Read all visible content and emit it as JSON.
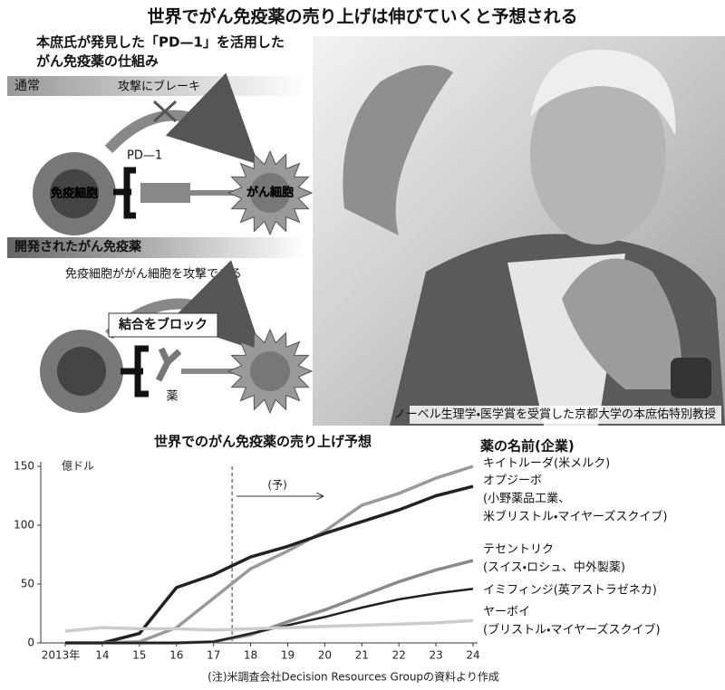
{
  "header": {
    "title": "世界でがん免疫薬の売り上げは伸びていくと予想される"
  },
  "diagram": {
    "title_lines": [
      "本庶氏が発見した「PD—1」を活用した",
      "がん免疫薬の仕組み"
    ],
    "normal": {
      "label": "通常",
      "brake": "攻撃にブレーキ",
      "pd1": "PD—1",
      "immune_cell": "免疫細胞",
      "cancer_cell": "がん細胞"
    },
    "developed": {
      "label": "開発されたがん免疫薬",
      "caption": "免疫細胞ががん細胞を攻撃できる",
      "block": "結合をブロック",
      "drug": "薬"
    }
  },
  "photo": {
    "caption": "ノーベル生理学・医学賞を受賞した京都大学の本庶佑特別教授"
  },
  "chart_data": {
    "type": "line",
    "title": "世界でのがん免疫薬の売り上げ予想",
    "y_unit": "億ドル",
    "legend_title": "薬の名前(企業)",
    "forecast_label": "(予)",
    "source": "(注)米調査会社Decision Resources Groupの資料より作成",
    "categories": [
      "2013年",
      "14",
      "15",
      "16",
      "17",
      "18",
      "19",
      "20",
      "21",
      "22",
      "23",
      "24"
    ],
    "ylim": [
      0,
      150
    ],
    "yticks": [
      0,
      50,
      100,
      150
    ],
    "series": [
      {
        "name": "キイトルーダ(米メルク)",
        "sub": [],
        "color": "#9a9a9a",
        "width": 3.5,
        "values": [
          0,
          0,
          1,
          13,
          38,
          63,
          78,
          95,
          117,
          127,
          140,
          150
        ]
      },
      {
        "name": "オプジーボ",
        "sub": [
          "(小野薬品工業、",
          "米ブリストル・マイヤーズスクイブ)"
        ],
        "color": "#222222",
        "width": 3.5,
        "values": [
          0,
          0,
          8,
          47,
          58,
          73,
          82,
          93,
          103,
          113,
          125,
          133
        ]
      },
      {
        "name": "テセントリク",
        "sub": [
          "(スイス・ロシュ、中外製薬)"
        ],
        "color": "#8a8a8a",
        "width": 3.5,
        "values": [
          0,
          0,
          0,
          0,
          1,
          7,
          18,
          28,
          40,
          52,
          62,
          70
        ]
      },
      {
        "name": "イミフィンジ(英アストラゼネカ)",
        "sub": [],
        "color": "#222222",
        "width": 2.5,
        "values": [
          0,
          0,
          0,
          0,
          1,
          8,
          15,
          22,
          30,
          37,
          42,
          46
        ]
      },
      {
        "name": "ヤーボイ",
        "sub": [
          "(ブリストル・マイヤーズスクイブ)"
        ],
        "color": "#cccccc",
        "width": 3.5,
        "values": [
          10,
          13,
          12,
          12,
          11,
          12,
          13,
          14,
          15,
          16,
          17,
          19
        ]
      }
    ]
  }
}
